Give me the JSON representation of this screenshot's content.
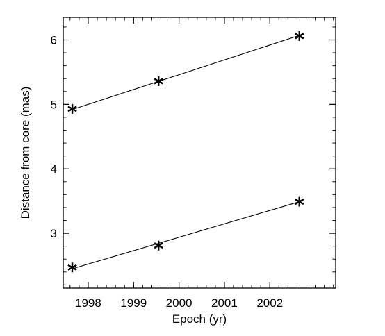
{
  "chart_data": {
    "type": "scatter",
    "xlabel": "Epoch (yr)",
    "ylabel": "Distance from core (mas)",
    "xlim": [
      1997.45,
      2003.45
    ],
    "ylim": [
      2.15,
      6.35
    ],
    "x_ticks": [
      1998,
      1999,
      2000,
      2001,
      2002
    ],
    "x_tick_labels": [
      "1998",
      "1999",
      "2000",
      "2001",
      "2002"
    ],
    "y_ticks": [
      3,
      4,
      5,
      6
    ],
    "y_tick_labels": [
      "3",
      "4",
      "5",
      "6"
    ],
    "x_minor_step": 0.2,
    "y_minor_step": 0.2,
    "grid": false,
    "marker": "asterisk",
    "color": "#000000",
    "series": [
      {
        "points": [
          {
            "x": 1997.65,
            "y": 4.93
          },
          {
            "x": 1999.55,
            "y": 5.36
          },
          {
            "x": 2002.65,
            "y": 6.06
          }
        ],
        "fit": [
          {
            "x": 1997.65,
            "y": 4.92
          },
          {
            "x": 2002.65,
            "y": 6.07
          }
        ]
      },
      {
        "points": [
          {
            "x": 1997.65,
            "y": 2.47
          },
          {
            "x": 1999.55,
            "y": 2.81
          },
          {
            "x": 2002.65,
            "y": 3.49
          }
        ],
        "fit": [
          {
            "x": 1997.65,
            "y": 2.45
          },
          {
            "x": 2002.65,
            "y": 3.49
          }
        ]
      }
    ]
  }
}
